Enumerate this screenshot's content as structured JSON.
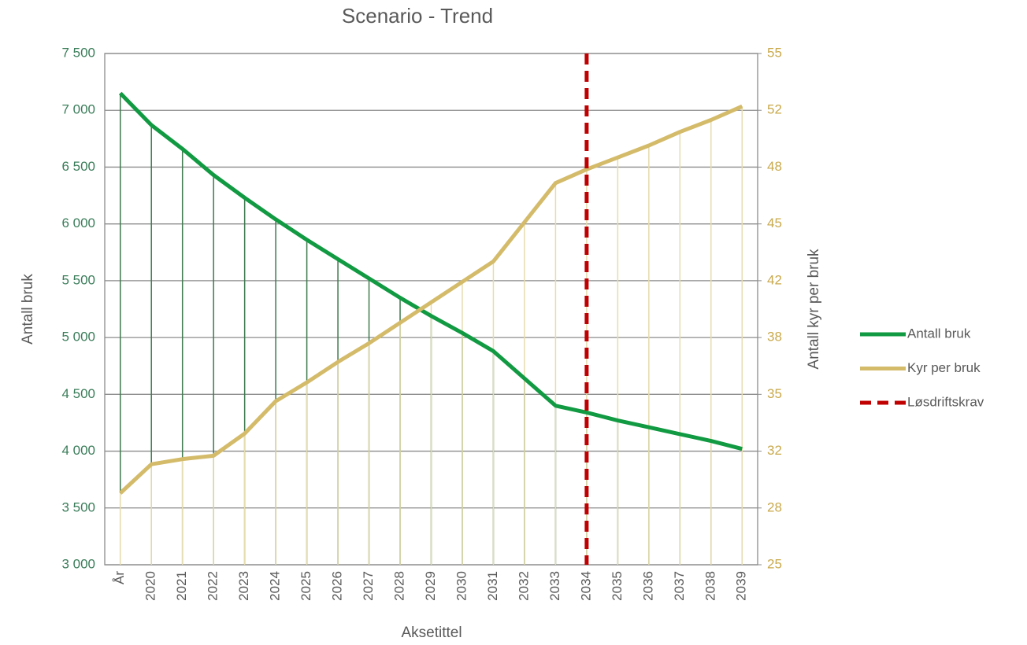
{
  "chart_data": {
    "type": "line",
    "title": "Scenario - Trend",
    "xlabel": "Aksetittel",
    "ylabel": "Antall bruk",
    "y2label": "Antall kyr per bruk",
    "categories": [
      "År",
      "2020",
      "2021",
      "2022",
      "2023",
      "2024",
      "2025",
      "2026",
      "2027",
      "2028",
      "2029",
      "2030",
      "2031",
      "2032",
      "2033",
      "2034",
      "2035",
      "2036",
      "2037",
      "2038",
      "2039"
    ],
    "series": [
      {
        "name": "Antall bruk",
        "color": "#119a42",
        "drop_color": "#3e7a4e",
        "axis": "y",
        "values": [
          7150,
          6870,
          6660,
          6430,
          6230,
          6040,
          5860,
          5690,
          5520,
          5350,
          5190,
          5040,
          4880,
          4640,
          4400,
          4340,
          4270,
          4210,
          4150,
          4090,
          4020
        ]
      },
      {
        "name": "Kyr per bruk",
        "color": "#d4bb6a",
        "drop_color": "#e6dcae",
        "axis": "y2",
        "values": [
          29.2,
          30.9,
          31.2,
          31.4,
          32.7,
          34.6,
          35.7,
          36.9,
          38.0,
          39.2,
          40.4,
          41.6,
          42.8,
          45.1,
          47.4,
          48.2,
          48.9,
          49.6,
          50.4,
          51.1,
          51.9
        ]
      }
    ],
    "vertical_line": {
      "name": "Løsdriftskrav",
      "category": "2034",
      "color": "#c00000"
    },
    "ylim": [
      3000,
      7500
    ],
    "yticks": [
      {
        "value": 3000,
        "label": "3 000"
      },
      {
        "value": 3500,
        "label": "3 500"
      },
      {
        "value": 4000,
        "label": "4 000"
      },
      {
        "value": 4500,
        "label": "4 500"
      },
      {
        "value": 5000,
        "label": "5 000"
      },
      {
        "value": 5500,
        "label": "5 500"
      },
      {
        "value": 6000,
        "label": "6 000"
      },
      {
        "value": 6500,
        "label": "6 500"
      },
      {
        "value": 7000,
        "label": "7 000"
      },
      {
        "value": 7500,
        "label": "7 500"
      }
    ],
    "y2lim": [
      25,
      55
    ],
    "y2ticks": [
      25,
      {
        "value": 28.333,
        "label": "28"
      },
      {
        "value": 31.667,
        "label": "32"
      },
      35,
      {
        "value": 38.333,
        "label": "38"
      },
      {
        "value": 41.667,
        "label": "42"
      },
      45,
      {
        "value": 48.333,
        "label": "48"
      },
      {
        "value": 51.667,
        "label": "52"
      },
      55
    ],
    "ytick_color": "#3a7d5a",
    "y2tick_color": "#c9a94b",
    "grid": true,
    "legend": "right"
  }
}
